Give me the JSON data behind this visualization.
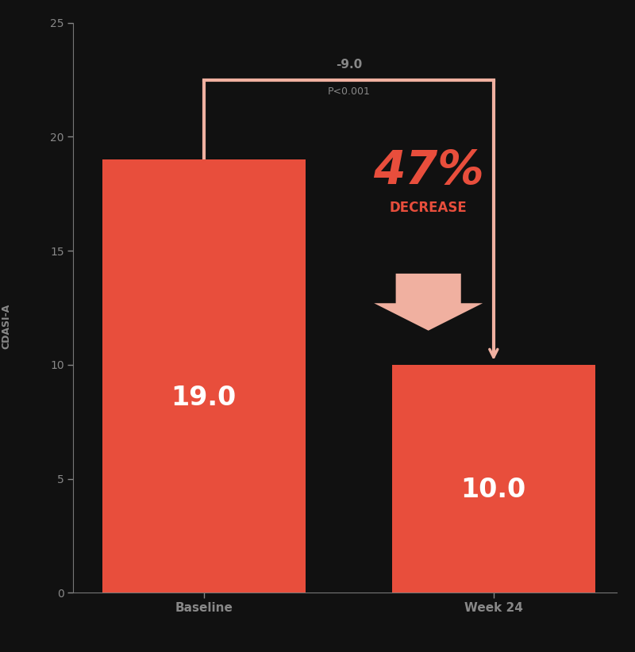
{
  "categories": [
    "Baseline",
    "Week 24"
  ],
  "values": [
    19.0,
    10.0
  ],
  "bar_color": "#e84e3c",
  "background_color": "#111111",
  "axis_color": "#777777",
  "tick_color": "#888888",
  "label_color": "#888888",
  "bar_label_color": "#ffffff",
  "bar_label_fontsize": 24,
  "percent_text": "47%",
  "percent_color": "#e84e3c",
  "decrease_text": "DECREASE",
  "decrease_color": "#e84e3c",
  "bracket_text": "-9.0",
  "bracket_subtext": "P<0.001",
  "bracket_color": "#f0b0a0",
  "ylim": [
    0,
    25
  ],
  "yticks": [
    0,
    5,
    10,
    15,
    20,
    25
  ],
  "figsize": [
    8.0,
    8.22
  ],
  "dpi": 100
}
